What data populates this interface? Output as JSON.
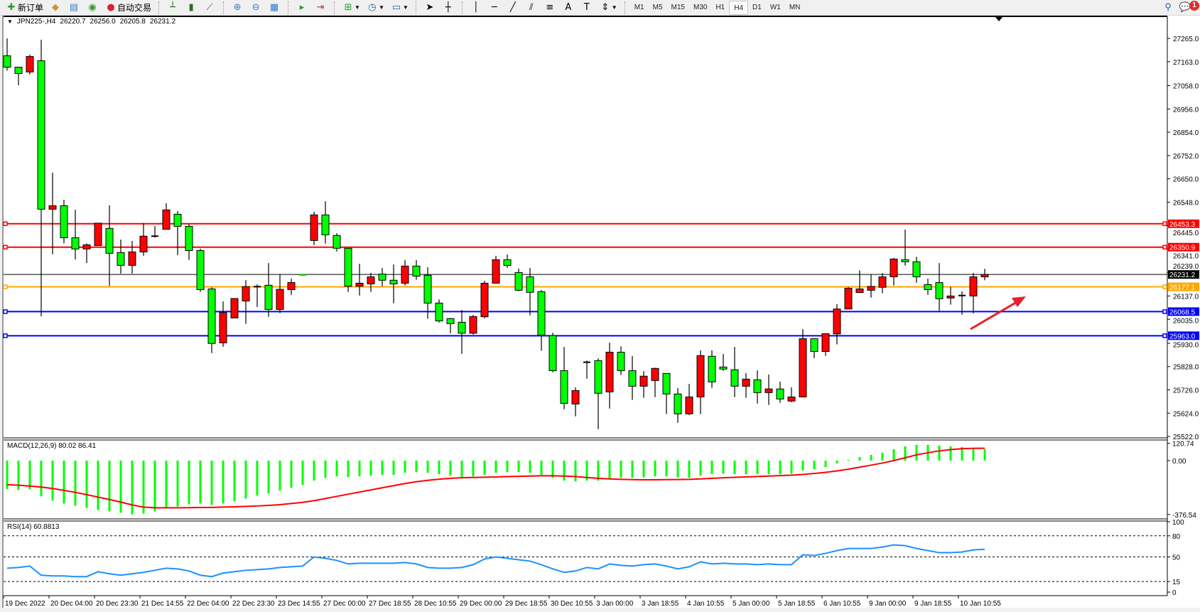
{
  "toolbar": {
    "new_order_label": "新订单",
    "auto_trading_label": "自动交易",
    "icons": [
      "new-order-icon",
      "market-watch-icon",
      "navigator-icon",
      "signals-icon",
      "auto-trading-icon",
      "bar-chart-icon",
      "candlestick-icon",
      "line-chart-icon",
      "zoom-in-icon",
      "zoom-out-icon",
      "tile-windows-icon",
      "chart-shift-icon",
      "autoscroll-icon",
      "new-chart-icon",
      "periods-icon",
      "templates-icon",
      "cursor-icon",
      "crosshair-icon",
      "vertical-line-icon",
      "horizontal-line-icon",
      "trend-line-icon",
      "equidistant-channel-icon",
      "fibonacci-icon",
      "text-icon",
      "text-label-icon",
      "arrows-icon"
    ],
    "timeframes": [
      "M1",
      "M5",
      "M15",
      "M30",
      "H1",
      "H4",
      "D1",
      "W1",
      "MN"
    ],
    "active_timeframe": "H4",
    "notification_count": "1"
  },
  "chart": {
    "symbol": "JPN225-,H4",
    "ohlc_text": [
      "26220.7",
      "26256.0",
      "26205.8",
      "26231.2"
    ],
    "bull_color": "#ff0000",
    "bear_color": "#00ff00",
    "current_price": "26231.2",
    "price_ticks": [
      "27265.0",
      "27163.0",
      "27058.0",
      "26956.0",
      "26854.0",
      "26752.0",
      "26650.0",
      "26548.0",
      "26445.0",
      "26341.0",
      "26239.0",
      "26137.0",
      "26035.0",
      "25930.0",
      "25828.0",
      "25726.0",
      "25624.0",
      "25522.0"
    ],
    "levels": [
      {
        "value": "26453.3",
        "color": "#ff0000"
      },
      {
        "value": "26350.9",
        "color": "#ff0000"
      },
      {
        "value": "26177.1",
        "color": "#ffa500"
      },
      {
        "value": "26068.5",
        "color": "#0000ff"
      },
      {
        "value": "25963.0",
        "color": "#0000ff"
      }
    ],
    "candles": [
      [
        27189,
        27265,
        27124,
        27139
      ],
      [
        27139,
        27139,
        27060,
        27111
      ],
      [
        27118,
        27194,
        27107,
        27186
      ],
      [
        27167,
        27259,
        26048,
        26517
      ],
      [
        26517,
        26677,
        26320,
        26532
      ],
      [
        26532,
        26558,
        26367,
        26392
      ],
      [
        26392,
        26515,
        26297,
        26343
      ],
      [
        26343,
        26367,
        26281,
        26361
      ],
      [
        26358,
        26456,
        26358,
        26456
      ],
      [
        26433,
        26534,
        26181,
        26324
      ],
      [
        26327,
        26384,
        26235,
        26271
      ],
      [
        26271,
        26378,
        26235,
        26330
      ],
      [
        26330,
        26456,
        26313,
        26399
      ],
      [
        26400,
        26443,
        26393,
        26399
      ],
      [
        26429,
        26543,
        26429,
        26514
      ],
      [
        26495,
        26509,
        26316,
        26442
      ],
      [
        26442,
        26452,
        26295,
        26336
      ],
      [
        26336,
        26344,
        26155,
        26165
      ],
      [
        26168,
        26175,
        25887,
        25929
      ],
      [
        25932,
        26113,
        25915,
        26064
      ],
      [
        26041,
        26126,
        26041,
        26126
      ],
      [
        26115,
        26207,
        26015,
        26178
      ],
      [
        26180,
        26188,
        26089,
        26178
      ],
      [
        26184,
        26281,
        26046,
        26078
      ],
      [
        26078,
        26233,
        26062,
        26166
      ],
      [
        26165,
        26213,
        26142,
        26196
      ],
      [
        26228,
        26229,
        26227,
        26228
      ],
      [
        26380,
        26506,
        26360,
        26492
      ],
      [
        26492,
        26552,
        26366,
        26405
      ],
      [
        26402,
        26412,
        26332,
        26346
      ],
      [
        26346,
        26346,
        26155,
        26180
      ],
      [
        26180,
        26278,
        26139,
        26193
      ],
      [
        26190,
        26238,
        26155,
        26221
      ],
      [
        26233,
        26260,
        26180,
        26206
      ],
      [
        26206,
        26275,
        26105,
        26190
      ],
      [
        26193,
        26294,
        26183,
        26268
      ],
      [
        26268,
        26294,
        26208,
        26224
      ],
      [
        26228,
        26263,
        26037,
        26106
      ],
      [
        26106,
        26122,
        26021,
        26028
      ],
      [
        26038,
        26041,
        25974,
        26016
      ],
      [
        26022,
        26076,
        25884,
        25974
      ],
      [
        25974,
        26054,
        25968,
        26047
      ],
      [
        26046,
        26204,
        26039,
        26193
      ],
      [
        26193,
        26313,
        26193,
        26296
      ],
      [
        26296,
        26319,
        26260,
        26271
      ],
      [
        26240,
        26257,
        26158,
        26162
      ],
      [
        26221,
        26260,
        26052,
        26153
      ],
      [
        26156,
        26163,
        25897,
        25966
      ],
      [
        25964,
        25976,
        25803,
        25810
      ],
      [
        25810,
        25914,
        25641,
        25667
      ],
      [
        25664,
        25737,
        25610,
        25723
      ],
      [
        25846,
        25854,
        25775,
        25847
      ],
      [
        25854,
        25864,
        25554,
        25711
      ],
      [
        25717,
        25933,
        25644,
        25891
      ],
      [
        25891,
        25916,
        25791,
        25810
      ],
      [
        25810,
        25874,
        25682,
        25742
      ],
      [
        25742,
        25808,
        25691,
        25786
      ],
      [
        25767,
        25823,
        25694,
        25820
      ],
      [
        25798,
        25798,
        25620,
        25708
      ],
      [
        25708,
        25734,
        25582,
        25621
      ],
      [
        25621,
        25752,
        25616,
        25695
      ],
      [
        25695,
        25899,
        25620,
        25876
      ],
      [
        25873,
        25899,
        25735,
        25761
      ],
      [
        25826,
        25883,
        25809,
        25817
      ],
      [
        25814,
        25914,
        25694,
        25742
      ],
      [
        25742,
        25799,
        25691,
        25773
      ],
      [
        25770,
        25811,
        25666,
        25714
      ],
      [
        25714,
        25793,
        25660,
        25730
      ],
      [
        25730,
        25762,
        25669,
        25686
      ],
      [
        25677,
        25737,
        25672,
        25695
      ],
      [
        25695,
        25992,
        25695,
        25950
      ],
      [
        25950,
        25950,
        25865,
        25894
      ],
      [
        25894,
        25972,
        25875,
        25972
      ],
      [
        25971,
        26101,
        25925,
        26080
      ],
      [
        26080,
        26176,
        26080,
        26171
      ],
      [
        26152,
        26249,
        26152,
        26168
      ],
      [
        26162,
        26233,
        26130,
        26179
      ],
      [
        26175,
        26238,
        26149,
        26221
      ],
      [
        26221,
        26304,
        26183,
        26299
      ],
      [
        26296,
        26428,
        26270,
        26287
      ],
      [
        26287,
        26309,
        26195,
        26221
      ],
      [
        26187,
        26213,
        26142,
        26165
      ],
      [
        26196,
        26281,
        26072,
        26125
      ],
      [
        26128,
        26177,
        26099,
        26137
      ],
      [
        26140,
        26157,
        26055,
        26139
      ],
      [
        26137,
        26238,
        26061,
        26221
      ],
      [
        26220.7,
        26256.0,
        26205.8,
        26231.2
      ]
    ],
    "time_labels": [
      "19 Dec 2022",
      "20 Dec 04:00",
      "20 Dec 23:30",
      "21 Dec 14:55",
      "22 Dec 04:00",
      "22 Dec 23:30",
      "23 Dec 14:55",
      "27 Dec 00:00",
      "27 Dec 18:55",
      "28 Dec 10:55",
      "29 Dec 00:00",
      "29 Dec 18:55",
      "30 Dec 10:55",
      "3 Jan 00:00",
      "3 Jan 18:55",
      "4 Jan 10:55",
      "5 Jan 00:00",
      "5 Jan 18:55",
      "6 Jan 10:55",
      "9 Jan 00:00",
      "9 Jan 18:55",
      "10 Jan 10:55"
    ],
    "arrow_color": "#e8202a"
  },
  "macd": {
    "label": "MACD(12,26,9) 80.02 86.41",
    "ticks": [
      "120.74",
      "0.00",
      "-376.54"
    ],
    "histogram_color": "#00ff00",
    "signal_color": "#ff0000",
    "histogram": [
      -199,
      -205,
      -200,
      -250,
      -280,
      -300,
      -315,
      -330,
      -345,
      -355,
      -365,
      -376,
      -370,
      -355,
      -335,
      -320,
      -305,
      -300,
      -310,
      -300,
      -285,
      -265,
      -245,
      -230,
      -210,
      -190,
      -170,
      -140,
      -120,
      -110,
      -115,
      -110,
      -105,
      -100,
      -100,
      -85,
      -80,
      -85,
      -95,
      -105,
      -115,
      -110,
      -100,
      -85,
      -80,
      -80,
      -85,
      -100,
      -120,
      -140,
      -145,
      -140,
      -140,
      -125,
      -120,
      -120,
      -118,
      -110,
      -110,
      -118,
      -120,
      -105,
      -95,
      -92,
      -95,
      -95,
      -95,
      -95,
      -95,
      -92,
      -70,
      -60,
      -45,
      -20,
      5,
      25,
      40,
      55,
      80,
      100,
      110,
      110,
      105,
      100,
      95,
      90,
      80.02
    ],
    "signal": [
      -168,
      -172,
      -178,
      -185,
      -195,
      -208,
      -222,
      -238,
      -255,
      -272,
      -290,
      -310,
      -325,
      -330,
      -330,
      -330,
      -329,
      -328,
      -327,
      -325,
      -323,
      -320,
      -317,
      -313,
      -308,
      -300,
      -292,
      -280,
      -265,
      -250,
      -235,
      -220,
      -205,
      -190,
      -175,
      -160,
      -148,
      -138,
      -130,
      -124,
      -120,
      -118,
      -116,
      -114,
      -112,
      -110,
      -108,
      -106,
      -106,
      -108,
      -112,
      -118,
      -124,
      -128,
      -131,
      -133,
      -134,
      -134,
      -133,
      -132,
      -131,
      -128,
      -124,
      -120,
      -117,
      -114,
      -111,
      -108,
      -105,
      -102,
      -97,
      -90,
      -82,
      -72,
      -60,
      -46,
      -32,
      -17,
      0,
      20,
      40,
      55,
      68,
      77,
      83,
      86,
      86.41
    ]
  },
  "rsi": {
    "label": "RSI(14) 60.8813",
    "ticks": [
      "100",
      "80",
      "50",
      "15",
      "0"
    ],
    "line_color": "#1e90ff",
    "values": [
      34,
      35,
      37,
      24,
      23,
      23,
      22,
      22,
      29,
      26,
      24,
      26,
      28,
      31,
      34,
      33,
      30,
      24,
      22,
      27,
      29,
      31,
      32,
      33,
      35,
      36,
      37,
      50,
      48,
      45,
      40,
      41,
      41,
      41,
      41,
      42,
      40,
      35,
      34,
      34,
      35,
      39,
      47,
      50,
      48,
      46,
      44,
      39,
      33,
      28,
      30,
      35,
      33,
      40,
      38,
      37,
      39,
      40,
      37,
      33,
      36,
      43,
      40,
      41,
      40,
      40,
      39,
      40,
      39,
      39,
      53,
      52,
      55,
      59,
      62,
      62,
      62,
      64,
      67,
      66,
      62,
      59,
      56,
      56,
      57,
      60,
      60.88
    ]
  }
}
